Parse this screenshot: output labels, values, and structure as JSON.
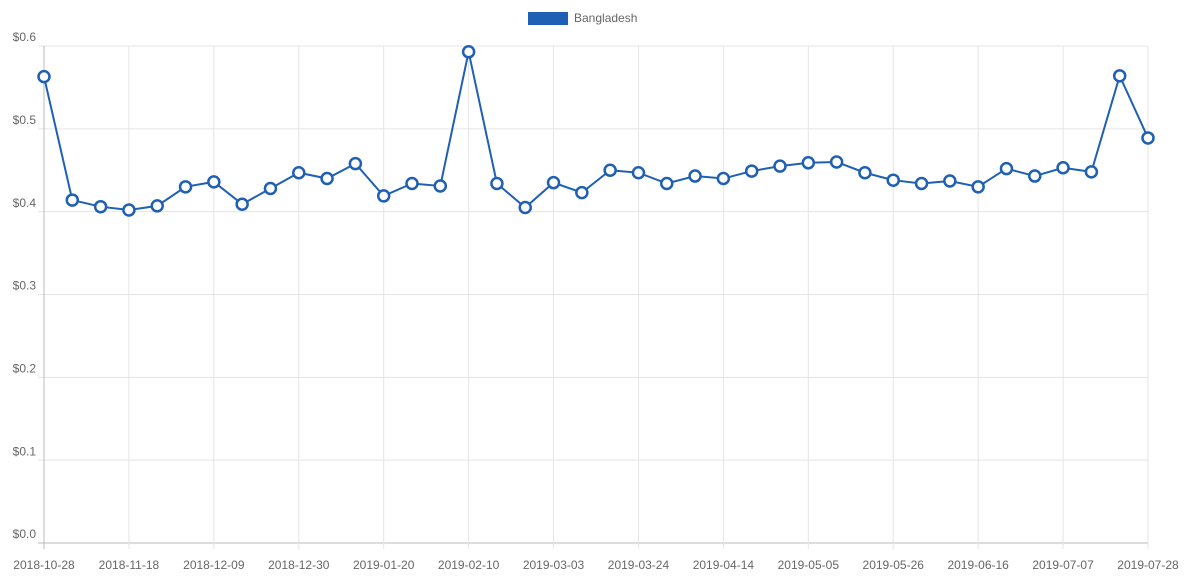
{
  "chart_data": {
    "type": "line",
    "categories": [
      "2018-10-28",
      null,
      null,
      "2018-11-18",
      null,
      null,
      "2018-12-09",
      null,
      null,
      "2018-12-30",
      null,
      null,
      "2019-01-20",
      null,
      null,
      "2019-02-10",
      null,
      null,
      "2019-03-03",
      null,
      null,
      "2019-03-24",
      null,
      null,
      "2019-04-14",
      null,
      null,
      "2019-05-05",
      null,
      null,
      "2019-05-26",
      null,
      null,
      "2019-06-16",
      null,
      null,
      "2019-07-07",
      null,
      null,
      "2019-07-28"
    ],
    "series": [
      {
        "name": "Bangladesh",
        "color": "#1f5fb4",
        "values": [
          0.563,
          0.414,
          0.406,
          0.402,
          0.407,
          0.43,
          0.436,
          0.409,
          0.428,
          0.447,
          0.44,
          0.458,
          0.419,
          0.434,
          0.431,
          0.593,
          0.434,
          0.405,
          0.435,
          0.423,
          0.45,
          0.447,
          0.434,
          0.443,
          0.44,
          0.449,
          0.455,
          0.459,
          0.46,
          0.447,
          0.438,
          0.434,
          0.437,
          0.43,
          0.452,
          0.443,
          0.453,
          0.448,
          0.564,
          0.489
        ]
      }
    ],
    "ylim": [
      0,
      0.6
    ],
    "yticks": [
      {
        "value": 0,
        "label": "$0.0"
      },
      {
        "value": 0.1,
        "label": "$0.1"
      },
      {
        "value": 0.2,
        "label": "$0.2"
      },
      {
        "value": 0.3,
        "label": "$0.3"
      },
      {
        "value": 0.4,
        "label": "$0.4"
      },
      {
        "value": 0.5,
        "label": "$0.5"
      },
      {
        "value": 0.6,
        "label": "$0.6"
      }
    ],
    "grid": true,
    "legend": "top"
  }
}
